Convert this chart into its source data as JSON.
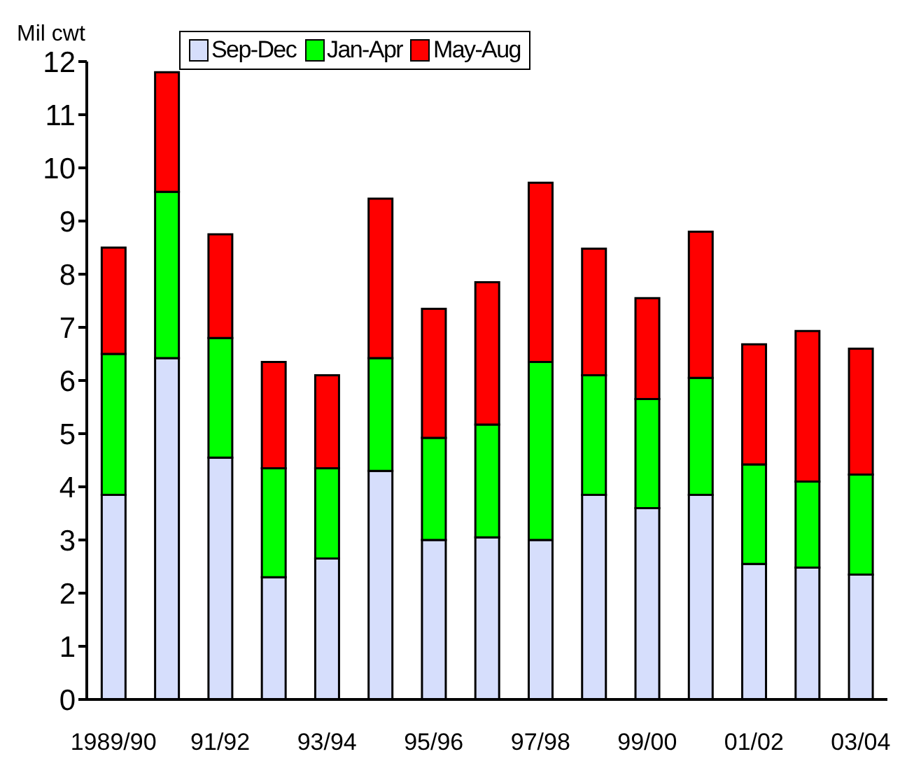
{
  "chart_data": {
    "type": "bar",
    "stacked": true,
    "ylabel": "Mil cwt",
    "categories": [
      "1989/90",
      null,
      "91/92",
      null,
      "93/94",
      null,
      "95/96",
      null,
      "97/98",
      null,
      "99/00",
      null,
      "01/02",
      null,
      "03/04"
    ],
    "series": [
      {
        "name": "Sep-Dec",
        "color": "#d6defc",
        "values": [
          3.85,
          6.42,
          4.55,
          2.3,
          2.65,
          4.3,
          3.0,
          3.05,
          3.0,
          3.85,
          3.6,
          3.85,
          2.55,
          2.48,
          2.35
        ]
      },
      {
        "name": "Jan-Apr",
        "color": "#00ff00",
        "values": [
          2.65,
          3.13,
          2.25,
          2.05,
          1.7,
          2.12,
          1.92,
          2.12,
          3.35,
          2.25,
          2.05,
          2.2,
          1.87,
          1.62,
          1.88
        ]
      },
      {
        "name": "May-Aug",
        "color": "#ff0000",
        "values": [
          2.0,
          2.25,
          1.95,
          2.0,
          1.75,
          3.0,
          2.43,
          2.68,
          3.37,
          2.38,
          1.9,
          2.75,
          2.26,
          2.83,
          2.37
        ]
      }
    ],
    "ylim": [
      0,
      12
    ],
    "yticks": [
      0,
      1,
      2,
      3,
      4,
      5,
      6,
      7,
      8,
      9,
      10,
      11,
      12
    ],
    "legend": "top",
    "grid": false
  }
}
